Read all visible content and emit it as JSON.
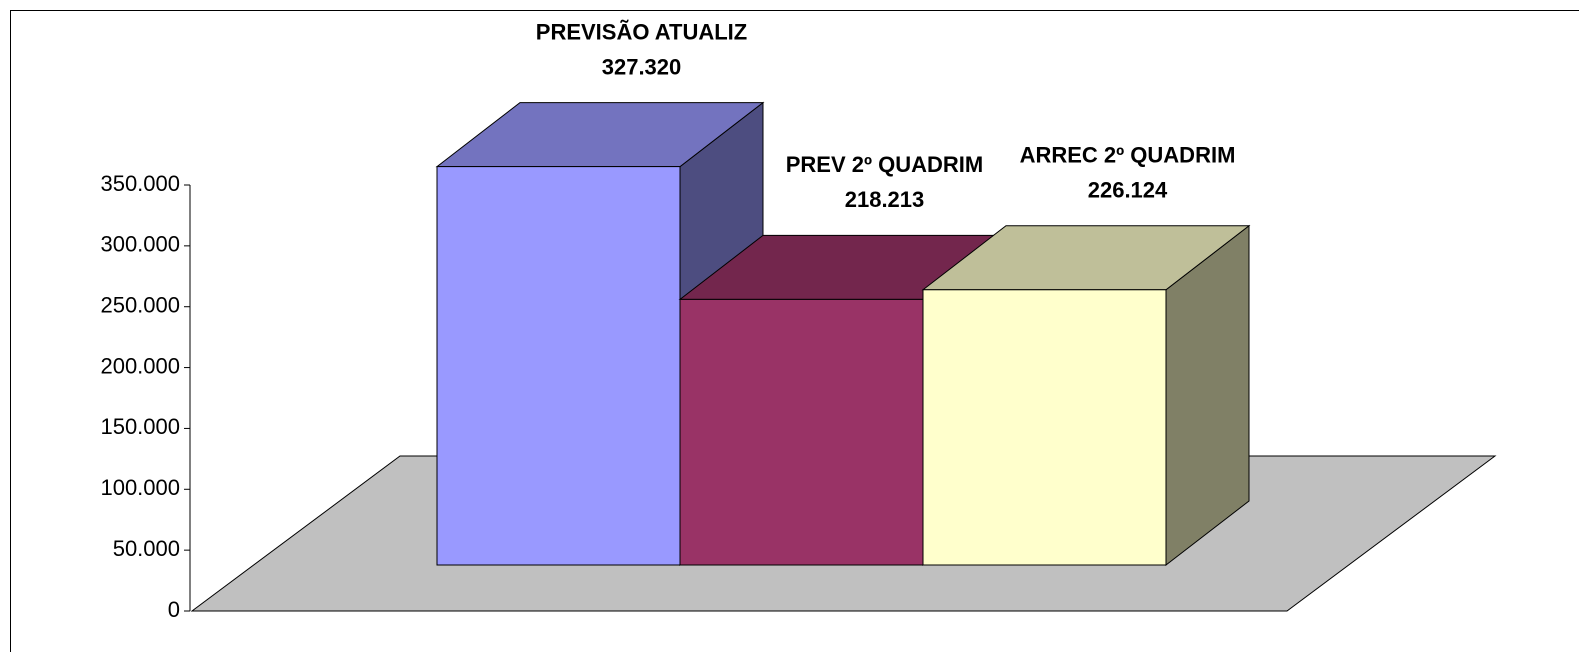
{
  "chart_data": {
    "type": "bar3d",
    "categories": [
      "PREVISÃO ATUALIZ",
      "PREV 2º QUADRIM",
      "ARREC 2º QUADRIM"
    ],
    "values": [
      327320,
      218213,
      226124
    ],
    "value_labels": [
      "327.320",
      "218.213",
      "226.124"
    ],
    "colors": [
      "#9999ff",
      "#993366",
      "#ffffcc"
    ],
    "ylim": [
      0,
      350000
    ],
    "yticks": [
      0,
      {
        "value": 50000,
        "label": "50.000"
      },
      {
        "value": 100000,
        "label": "100.000"
      },
      {
        "value": 150000,
        "label": "150.000"
      },
      {
        "value": 200000,
        "label": "200.000"
      },
      {
        "value": 250000,
        "label": "250.000"
      },
      {
        "value": 300000,
        "label": "300.000"
      },
      {
        "value": 350000,
        "label": "350.000"
      }
    ]
  }
}
